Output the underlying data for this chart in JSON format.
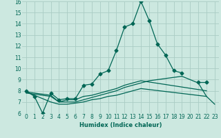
{
  "xlabel": "Humidex (Indice chaleur)",
  "ylabel": "",
  "bg_color": "#cce8e0",
  "grid_color": "#aaccc4",
  "line_color": "#006655",
  "xlim": [
    -0.5,
    23.5
  ],
  "ylim": [
    6,
    16
  ],
  "xticks": [
    0,
    1,
    2,
    3,
    4,
    5,
    6,
    7,
    8,
    9,
    10,
    11,
    12,
    13,
    14,
    15,
    16,
    17,
    18,
    19,
    20,
    21,
    22,
    23
  ],
  "yticks": [
    6,
    7,
    8,
    9,
    10,
    11,
    12,
    13,
    14,
    15,
    16
  ],
  "series": [
    {
      "x": [
        0,
        1,
        2,
        3,
        4,
        5,
        6,
        7,
        8,
        9,
        10,
        11,
        12,
        13,
        14,
        15,
        16,
        17,
        18,
        19,
        20,
        21,
        22
      ],
      "y": [
        8.0,
        7.5,
        6.0,
        7.8,
        7.2,
        7.3,
        7.3,
        8.5,
        8.6,
        9.5,
        9.8,
        11.6,
        13.7,
        14.0,
        16.0,
        14.3,
        12.2,
        11.2,
        9.8,
        9.6,
        null,
        8.8,
        8.8
      ],
      "marker": "D",
      "ms": 2.5
    },
    {
      "x": [
        0,
        3,
        4,
        5,
        6,
        7,
        8,
        9,
        10,
        11,
        12,
        13,
        14,
        22
      ],
      "y": [
        7.9,
        7.6,
        7.0,
        7.2,
        7.2,
        7.5,
        7.6,
        7.8,
        8.0,
        8.2,
        8.5,
        8.7,
        8.9,
        8.0
      ],
      "marker": null,
      "ms": 0
    },
    {
      "x": [
        0,
        3,
        4,
        5,
        6,
        7,
        8,
        9,
        10,
        11,
        12,
        13,
        14,
        22
      ],
      "y": [
        7.9,
        7.0,
        6.8,
        6.8,
        6.9,
        7.0,
        7.2,
        7.3,
        7.5,
        7.6,
        7.8,
        8.0,
        8.2,
        7.5
      ],
      "marker": null,
      "ms": 0
    },
    {
      "x": [
        0,
        3,
        4,
        5,
        6,
        7,
        8,
        9,
        10,
        11,
        12,
        13,
        14,
        15,
        16,
        17,
        18,
        19,
        21,
        22,
        23
      ],
      "y": [
        7.8,
        7.5,
        7.0,
        7.0,
        7.0,
        7.2,
        7.4,
        7.6,
        7.8,
        8.0,
        8.3,
        8.5,
        8.7,
        8.9,
        9.0,
        9.1,
        9.2,
        9.3,
        8.7,
        7.5,
        6.8
      ],
      "marker": null,
      "ms": 0
    }
  ]
}
